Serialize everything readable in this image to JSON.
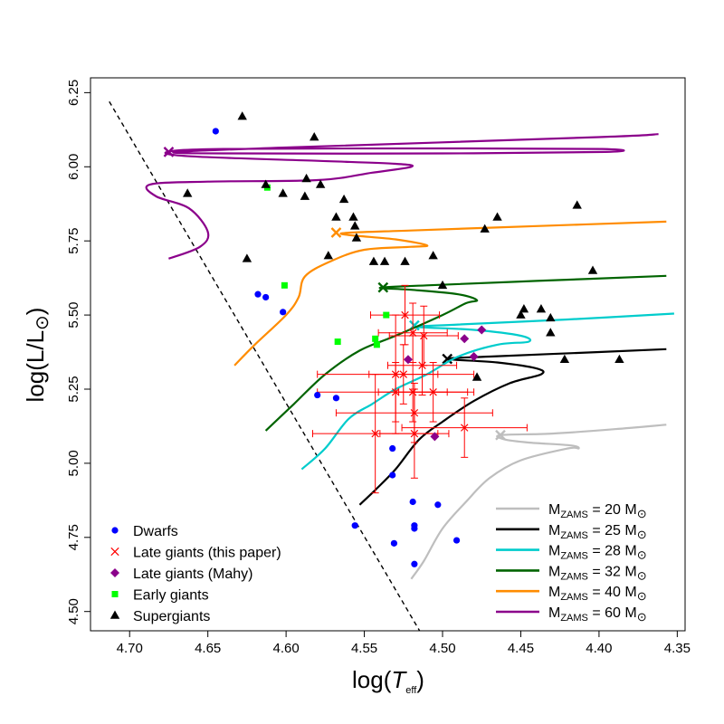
{
  "chart_data": {
    "type": "scatter",
    "xlabel_prefix": "log(",
    "xlabel_main": "T",
    "xlabel_sub": "eff",
    "xlabel_suffix": ")",
    "ylabel_prefix": "log(L/L",
    "ylabel_suffix": ")",
    "xlim": [
      4.725,
      4.345
    ],
    "ylim": [
      4.435,
      6.3
    ],
    "xticks": [
      4.7,
      4.65,
      4.6,
      4.55,
      4.5,
      4.45,
      4.4,
      4.35
    ],
    "xtick_labels": [
      "4.70",
      "4.65",
      "4.60",
      "4.55",
      "4.50",
      "4.45",
      "4.40",
      "4.35"
    ],
    "yticks": [
      4.5,
      4.75,
      5.0,
      5.25,
      5.5,
      5.75,
      6.0,
      6.25
    ],
    "ytick_labels": [
      "4.50",
      "4.75",
      "5.00",
      "5.25",
      "5.50",
      "5.75",
      "6.00",
      "6.25"
    ],
    "zams_line": [
      [
        4.713,
        6.22
      ],
      [
        4.513,
        4.42
      ]
    ],
    "tracks": [
      {
        "label": "M_ZAMS = 20 M_sun",
        "color": "#bebebe",
        "points": [
          [
            4.52,
            4.61
          ],
          [
            4.512,
            4.67
          ],
          [
            4.5,
            4.78
          ],
          [
            4.485,
            4.87
          ],
          [
            4.47,
            4.95
          ],
          [
            4.45,
            5.01
          ],
          [
            4.42,
            5.05
          ],
          [
            4.413,
            5.05
          ],
          [
            4.418,
            5.06
          ],
          [
            4.445,
            5.07
          ],
          [
            4.46,
            5.08
          ],
          [
            4.463,
            5.095
          ],
          [
            4.43,
            5.1
          ],
          [
            4.39,
            5.115
          ],
          [
            4.357,
            5.13
          ]
        ],
        "marker": [
          4.463,
          5.095
        ]
      },
      {
        "label": "M_ZAMS = 25 M_sun",
        "color": "#000000",
        "points": [
          [
            4.553,
            4.86
          ],
          [
            4.543,
            4.91
          ],
          [
            4.53,
            4.98
          ],
          [
            4.515,
            5.08
          ],
          [
            4.5,
            5.14
          ],
          [
            4.48,
            5.21
          ],
          [
            4.457,
            5.27
          ],
          [
            4.437,
            5.3
          ],
          [
            4.44,
            5.32
          ],
          [
            4.465,
            5.34
          ],
          [
            4.497,
            5.352
          ],
          [
            4.47,
            5.36
          ],
          [
            4.4,
            5.375
          ],
          [
            4.357,
            5.385
          ]
        ],
        "marker": [
          4.497,
          5.352
        ]
      },
      {
        "label": "M_ZAMS = 28 M_sun",
        "color": "#00cccc",
        "points": [
          [
            4.59,
            4.98
          ],
          [
            4.575,
            5.05
          ],
          [
            4.56,
            5.15
          ],
          [
            4.545,
            5.2
          ],
          [
            4.53,
            5.25
          ],
          [
            4.51,
            5.3
          ],
          [
            4.49,
            5.36
          ],
          [
            4.465,
            5.4
          ],
          [
            4.445,
            5.41
          ],
          [
            4.45,
            5.43
          ],
          [
            4.48,
            5.45
          ],
          [
            4.516,
            5.46
          ],
          [
            4.49,
            5.468
          ],
          [
            4.42,
            5.485
          ],
          [
            4.352,
            5.505
          ]
        ],
        "marker": [
          4.518,
          5.465
        ]
      },
      {
        "label": "M_ZAMS = 32 M_sun",
        "color": "#006400",
        "points": [
          [
            4.613,
            5.11
          ],
          [
            4.595,
            5.2
          ],
          [
            4.575,
            5.3
          ],
          [
            4.553,
            5.38
          ],
          [
            4.53,
            5.43
          ],
          [
            4.5,
            5.5
          ],
          [
            4.485,
            5.54
          ],
          [
            4.478,
            5.55
          ],
          [
            4.49,
            5.57
          ],
          [
            4.52,
            5.585
          ],
          [
            4.54,
            5.592
          ],
          [
            4.51,
            5.6
          ],
          [
            4.44,
            5.615
          ],
          [
            4.357,
            5.632
          ]
        ],
        "marker": [
          4.538,
          5.593
        ]
      },
      {
        "label": "M_ZAMS = 40 M_sun",
        "color": "#ff8c00",
        "points": [
          [
            4.633,
            5.33
          ],
          [
            4.62,
            5.4
          ],
          [
            4.6,
            5.5
          ],
          [
            4.592,
            5.56
          ],
          [
            4.588,
            5.63
          ],
          [
            4.572,
            5.68
          ],
          [
            4.55,
            5.72
          ],
          [
            4.52,
            5.73
          ],
          [
            4.51,
            5.735
          ],
          [
            4.53,
            5.755
          ],
          [
            4.565,
            5.775
          ],
          [
            4.52,
            5.785
          ],
          [
            4.44,
            5.8
          ],
          [
            4.357,
            5.815
          ]
        ],
        "marker": [
          4.568,
          5.778
        ]
      },
      {
        "label": "M_ZAMS = 60 M_sun",
        "color": "#8b008b",
        "points": [
          [
            4.675,
            5.69
          ],
          [
            4.655,
            5.73
          ],
          [
            4.65,
            5.78
          ],
          [
            4.662,
            5.86
          ],
          [
            4.683,
            5.9
          ],
          [
            4.687,
            5.94
          ],
          [
            4.65,
            5.95
          ],
          [
            4.58,
            5.955
          ],
          [
            4.545,
            5.98
          ],
          [
            4.52,
            6.0
          ],
          [
            4.53,
            6.01
          ],
          [
            4.58,
            6.02
          ],
          [
            4.66,
            6.035
          ],
          [
            4.676,
            6.05
          ],
          [
            4.64,
            6.06
          ],
          [
            4.5,
            6.062
          ],
          [
            4.398,
            6.06
          ],
          [
            4.396,
            6.05
          ],
          [
            4.5,
            6.045
          ],
          [
            4.64,
            6.045
          ],
          [
            4.67,
            6.05
          ],
          [
            4.6,
            6.065
          ],
          [
            4.4,
            6.1
          ],
          [
            4.362,
            6.11
          ]
        ],
        "marker": [
          4.675,
          6.05
        ]
      }
    ],
    "dwarfs": [
      [
        4.645,
        6.12
      ],
      [
        4.618,
        5.57
      ],
      [
        4.613,
        5.56
      ],
      [
        4.602,
        5.51
      ],
      [
        4.58,
        5.23
      ],
      [
        4.568,
        5.22
      ],
      [
        4.532,
        5.05
      ],
      [
        4.532,
        4.96
      ],
      [
        4.519,
        4.87
      ],
      [
        4.503,
        4.86
      ],
      [
        4.518,
        4.79
      ],
      [
        4.518,
        4.78
      ],
      [
        4.556,
        4.79
      ],
      [
        4.531,
        4.73
      ],
      [
        4.491,
        4.74
      ],
      [
        4.518,
        4.66
      ]
    ],
    "late_giants_this": [
      {
        "x": 4.524,
        "y": 5.5,
        "xerr": 0.022,
        "yerr": 0.1
      },
      {
        "x": 4.519,
        "y": 5.44,
        "xerr": 0.022,
        "yerr": 0.1
      },
      {
        "x": 4.512,
        "y": 5.43,
        "xerr": 0.022,
        "yerr": 0.1
      },
      {
        "x": 4.53,
        "y": 5.3,
        "xerr": 0.05,
        "yerr": 0.2
      },
      {
        "x": 4.525,
        "y": 5.3,
        "xerr": 0.022,
        "yerr": 0.1
      },
      {
        "x": 4.513,
        "y": 5.33,
        "xerr": 0.022,
        "yerr": 0.1
      },
      {
        "x": 4.53,
        "y": 5.24,
        "xerr": 0.05,
        "yerr": 0.1
      },
      {
        "x": 4.519,
        "y": 5.24,
        "xerr": 0.022,
        "yerr": 0.1
      },
      {
        "x": 4.506,
        "y": 5.24,
        "xerr": 0.022,
        "yerr": 0.1
      },
      {
        "x": 4.518,
        "y": 5.17,
        "xerr": 0.05,
        "yerr": 0.1
      },
      {
        "x": 4.486,
        "y": 5.12,
        "xerr": 0.04,
        "yerr": 0.1
      },
      {
        "x": 4.543,
        "y": 5.1,
        "xerr": 0.04,
        "yerr": 0.2
      },
      {
        "x": 4.518,
        "y": 5.1,
        "xerr": 0.022,
        "yerr": 0.15
      }
    ],
    "late_giants_mahy": [
      [
        4.522,
        5.35
      ],
      [
        4.486,
        5.42
      ],
      [
        4.475,
        5.45
      ],
      [
        4.48,
        5.36
      ],
      [
        4.505,
        5.09
      ]
    ],
    "early_giants": [
      [
        4.612,
        5.93
      ],
      [
        4.601,
        5.6
      ],
      [
        4.567,
        5.41
      ],
      [
        4.543,
        5.42
      ],
      [
        4.542,
        5.4
      ],
      [
        4.536,
        5.5
      ]
    ],
    "supergiants": [
      [
        4.628,
        6.17
      ],
      [
        4.582,
        6.1
      ],
      [
        4.663,
        5.91
      ],
      [
        4.613,
        5.94
      ],
      [
        4.602,
        5.91
      ],
      [
        4.587,
        5.96
      ],
      [
        4.588,
        5.9
      ],
      [
        4.578,
        5.94
      ],
      [
        4.568,
        5.83
      ],
      [
        4.563,
        5.89
      ],
      [
        4.557,
        5.83
      ],
      [
        4.556,
        5.8
      ],
      [
        4.573,
        5.7
      ],
      [
        4.555,
        5.76
      ],
      [
        4.544,
        5.68
      ],
      [
        4.537,
        5.68
      ],
      [
        4.524,
        5.68
      ],
      [
        4.506,
        5.7
      ],
      [
        4.5,
        5.6
      ],
      [
        4.473,
        5.79
      ],
      [
        4.465,
        5.83
      ],
      [
        4.448,
        5.52
      ],
      [
        4.437,
        5.52
      ],
      [
        4.431,
        5.49
      ],
      [
        4.431,
        5.44
      ],
      [
        4.45,
        5.5
      ],
      [
        4.414,
        5.87
      ],
      [
        4.404,
        5.65
      ],
      [
        4.422,
        5.35
      ],
      [
        4.387,
        5.35
      ],
      [
        4.625,
        5.69
      ],
      [
        4.478,
        5.29
      ]
    ],
    "legend_points": [
      {
        "label": "Dwarfs",
        "marker": "circle",
        "color": "#0000ff"
      },
      {
        "label": "Late giants (this paper)",
        "marker": "cross",
        "color": "#ff0000"
      },
      {
        "label": "Late giants (Mahy)",
        "marker": "diamond",
        "color": "#8b008b"
      },
      {
        "label": "Early giants",
        "marker": "square",
        "color": "#00ff00"
      },
      {
        "label": "Supergiants",
        "marker": "triangle",
        "color": "#000000"
      }
    ],
    "legend_tracks": [
      {
        "prefix": "M",
        "sub": "ZAMS",
        "value": " = 20 M",
        "color": "#bebebe"
      },
      {
        "prefix": "M",
        "sub": "ZAMS",
        "value": " = 25 M",
        "color": "#000000"
      },
      {
        "prefix": "M",
        "sub": "ZAMS",
        "value": " = 28 M",
        "color": "#00cccc"
      },
      {
        "prefix": "M",
        "sub": "ZAMS",
        "value": " = 32 M",
        "color": "#006400"
      },
      {
        "prefix": "M",
        "sub": "ZAMS",
        "value": " = 40 M",
        "color": "#ff8c00"
      },
      {
        "prefix": "M",
        "sub": "ZAMS",
        "value": " = 60 M",
        "color": "#8b008b"
      }
    ],
    "sun_symbol": "⊙"
  }
}
